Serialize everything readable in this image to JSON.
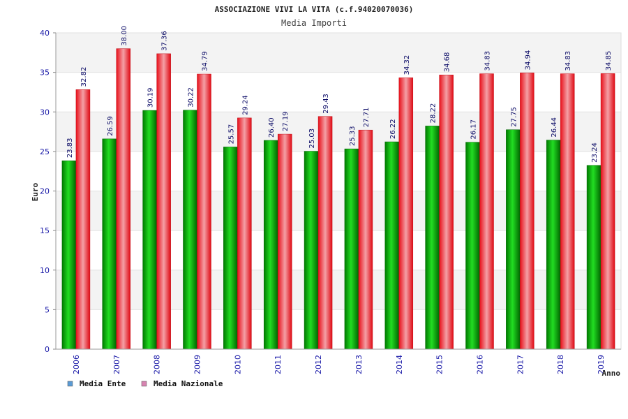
{
  "chart_data": {
    "type": "bar",
    "title": "ASSOCIAZIONE VIVI LA VITA (c.f.94020070036)",
    "subtitle": "Media Importi",
    "ylabel": "Euro",
    "xlabel": "Anno",
    "ylim": [
      0,
      40
    ],
    "yticks": [
      "0",
      "5",
      "10",
      "15",
      "20",
      "25",
      "30",
      "35",
      "40"
    ],
    "grid": true,
    "legend_position": "bottom-left",
    "categories": [
      "2006",
      "2007",
      "2008",
      "2009",
      "2010",
      "2011",
      "2012",
      "2013",
      "2014",
      "2015",
      "2016",
      "2017",
      "2018",
      "2019"
    ],
    "series": [
      {
        "name": "Media Ente",
        "color": "#00aa00",
        "legend_color": "#5b9bd5",
        "values": [
          23.83,
          26.59,
          30.19,
          30.22,
          25.57,
          26.4,
          25.03,
          25.33,
          26.22,
          28.22,
          26.17,
          27.75,
          26.44,
          23.24
        ],
        "labels": [
          "23.83",
          "26.59",
          "30.19",
          "30.22",
          "25.57",
          "26.40",
          "25.03",
          "25.33",
          "26.22",
          "28.22",
          "26.17",
          "27.75",
          "26.44",
          "23.24"
        ]
      },
      {
        "name": "Media Nazionale",
        "color": "#e8202a",
        "legend_color": "#d783b0",
        "values": [
          32.82,
          38.0,
          37.36,
          34.79,
          29.24,
          27.19,
          29.43,
          27.71,
          34.32,
          34.68,
          34.83,
          34.94,
          34.83,
          34.85
        ],
        "labels": [
          "32.82",
          "38.00",
          "37.36",
          "34.79",
          "29.24",
          "27.19",
          "29.43",
          "27.71",
          "34.32",
          "34.68",
          "34.83",
          "34.94",
          "34.83",
          "34.85"
        ]
      }
    ]
  }
}
